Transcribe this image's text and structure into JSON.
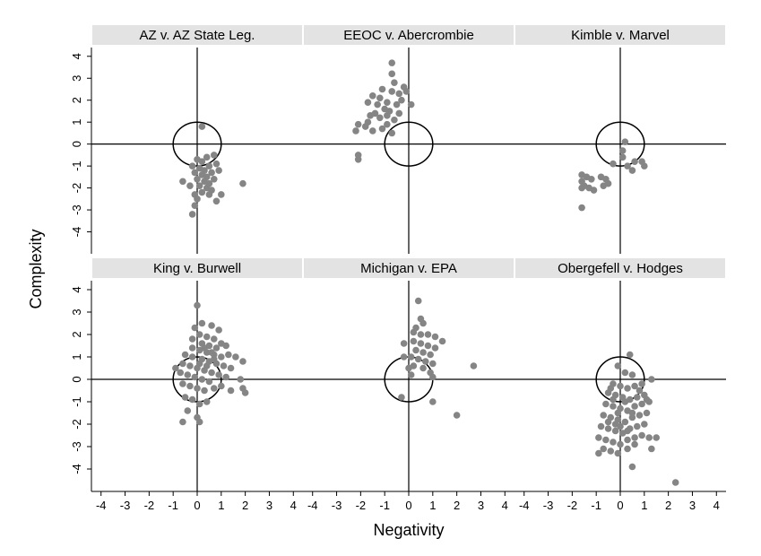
{
  "chart_data": {
    "type": "scatter",
    "xlabel": "Negativity",
    "ylabel": "Complexity",
    "xticks": [
      -4,
      -3,
      -2,
      -1,
      0,
      1,
      2,
      3,
      4
    ],
    "yticks": [
      -4,
      -3,
      -2,
      -1,
      0,
      1,
      2,
      3,
      4
    ],
    "xlim": [
      -4.4,
      4.4
    ],
    "ylim": [
      -5.0,
      4.4
    ],
    "reference_lines": {
      "x": 0,
      "y": 0
    },
    "reference_circle": {
      "center": [
        0,
        0
      ],
      "radius": 1
    },
    "grid": false,
    "point_color": "#858585",
    "strip_color": "#e3e3e3",
    "panels": [
      {
        "title": "AZ v. AZ State Leg.",
        "points": [
          [
            0.2,
            0.8
          ],
          [
            0.0,
            -0.7
          ],
          [
            0.2,
            -0.8
          ],
          [
            0.4,
            -0.6
          ],
          [
            0.7,
            -0.5
          ],
          [
            -0.2,
            -1.0
          ],
          [
            0.1,
            -1.1
          ],
          [
            0.3,
            -1.2
          ],
          [
            0.5,
            -1.0
          ],
          [
            0.8,
            -0.9
          ],
          [
            -0.1,
            -1.3
          ],
          [
            0.2,
            -1.4
          ],
          [
            0.4,
            -1.5
          ],
          [
            0.6,
            -1.3
          ],
          [
            0.9,
            -1.2
          ],
          [
            0.0,
            -1.6
          ],
          [
            0.3,
            -1.7
          ],
          [
            0.5,
            -1.8
          ],
          [
            0.7,
            -1.6
          ],
          [
            0.1,
            -1.9
          ],
          [
            0.4,
            -2.0
          ],
          [
            0.6,
            -2.1
          ],
          [
            0.2,
            -2.2
          ],
          [
            -0.1,
            -2.3
          ],
          [
            0.5,
            -2.3
          ],
          [
            0.8,
            -2.6
          ],
          [
            1.0,
            -2.3
          ],
          [
            0.0,
            -2.5
          ],
          [
            -0.6,
            -1.7
          ],
          [
            -0.3,
            -1.9
          ],
          [
            1.9,
            -1.8
          ],
          [
            -0.2,
            -3.2
          ],
          [
            -0.1,
            -2.8
          ]
        ]
      },
      {
        "title": "EEOC v. Abercrombie",
        "points": [
          [
            -2.1,
            -0.7
          ],
          [
            -2.1,
            -0.5
          ],
          [
            -2.2,
            0.6
          ],
          [
            -2.1,
            0.9
          ],
          [
            -1.8,
            0.8
          ],
          [
            -1.5,
            0.6
          ],
          [
            -1.7,
            1.0
          ],
          [
            -1.6,
            1.3
          ],
          [
            -1.4,
            1.4
          ],
          [
            -1.2,
            1.2
          ],
          [
            -1.0,
            1.6
          ],
          [
            -0.8,
            1.5
          ],
          [
            -0.6,
            1.1
          ],
          [
            -0.9,
            0.9
          ],
          [
            -1.1,
            0.7
          ],
          [
            -0.7,
            0.5
          ],
          [
            -1.7,
            1.9
          ],
          [
            -1.5,
            2.2
          ],
          [
            -1.2,
            2.1
          ],
          [
            -0.9,
            1.9
          ],
          [
            -0.5,
            1.8
          ],
          [
            -0.3,
            2.0
          ],
          [
            -1.1,
            2.5
          ],
          [
            -0.7,
            2.4
          ],
          [
            -0.4,
            2.3
          ],
          [
            -0.6,
            2.8
          ],
          [
            -0.7,
            3.2
          ],
          [
            -0.7,
            3.7
          ],
          [
            -0.2,
            2.6
          ],
          [
            -0.1,
            2.4
          ],
          [
            -0.4,
            1.4
          ],
          [
            -0.9,
            1.3
          ],
          [
            -1.3,
            1.8
          ],
          [
            0.1,
            1.8
          ]
        ]
      },
      {
        "title": "Kimble v. Marvel",
        "points": [
          [
            0.2,
            0.1
          ],
          [
            0.1,
            -0.3
          ],
          [
            -0.3,
            -0.9
          ],
          [
            0.1,
            -0.6
          ],
          [
            0.6,
            -0.8
          ],
          [
            0.9,
            -0.8
          ],
          [
            1.0,
            -1.0
          ],
          [
            0.5,
            -1.2
          ],
          [
            0.3,
            -1.0
          ],
          [
            -1.6,
            -1.4
          ],
          [
            -1.4,
            -1.5
          ],
          [
            -1.2,
            -1.6
          ],
          [
            -0.8,
            -1.5
          ],
          [
            -0.6,
            -1.6
          ],
          [
            -0.5,
            -1.8
          ],
          [
            -1.6,
            -1.7
          ],
          [
            -1.5,
            -1.9
          ],
          [
            -1.6,
            -2.0
          ],
          [
            -1.3,
            -2.0
          ],
          [
            -1.1,
            -2.1
          ],
          [
            -0.7,
            -1.9
          ],
          [
            -1.6,
            -2.9
          ]
        ]
      },
      {
        "title": "King v. Burwell",
        "points": [
          [
            0.0,
            3.3
          ],
          [
            -0.1,
            2.3
          ],
          [
            0.2,
            2.5
          ],
          [
            0.6,
            2.4
          ],
          [
            0.9,
            2.2
          ],
          [
            0.1,
            2.0
          ],
          [
            0.4,
            1.9
          ],
          [
            0.7,
            1.8
          ],
          [
            1.0,
            1.6
          ],
          [
            1.2,
            1.5
          ],
          [
            0.2,
            1.6
          ],
          [
            0.5,
            1.5
          ],
          [
            0.8,
            1.4
          ],
          [
            -0.2,
            1.4
          ],
          [
            0.1,
            1.3
          ],
          [
            0.4,
            1.2
          ],
          [
            0.7,
            1.1
          ],
          [
            1.0,
            1.0
          ],
          [
            1.3,
            1.1
          ],
          [
            1.6,
            1.0
          ],
          [
            -0.5,
            1.1
          ],
          [
            -0.2,
            1.0
          ],
          [
            0.2,
            0.9
          ],
          [
            0.5,
            0.8
          ],
          [
            0.8,
            0.7
          ],
          [
            1.1,
            0.6
          ],
          [
            1.4,
            0.5
          ],
          [
            -0.6,
            0.7
          ],
          [
            -0.3,
            0.6
          ],
          [
            0.0,
            0.5
          ],
          [
            0.3,
            0.4
          ],
          [
            0.6,
            0.3
          ],
          [
            0.9,
            0.2
          ],
          [
            1.2,
            0.1
          ],
          [
            -0.9,
            0.5
          ],
          [
            -0.7,
            0.3
          ],
          [
            -0.4,
            0.2
          ],
          [
            -0.1,
            0.1
          ],
          [
            0.2,
            0.0
          ],
          [
            0.5,
            -0.1
          ],
          [
            -0.6,
            -0.2
          ],
          [
            -0.3,
            -0.3
          ],
          [
            0.0,
            -0.4
          ],
          [
            0.3,
            -0.5
          ],
          [
            0.7,
            -0.4
          ],
          [
            1.0,
            -0.3
          ],
          [
            1.4,
            -0.5
          ],
          [
            -0.5,
            -0.8
          ],
          [
            -0.2,
            -0.9
          ],
          [
            0.1,
            -1.1
          ],
          [
            0.4,
            -1.0
          ],
          [
            -0.4,
            -1.4
          ],
          [
            0.0,
            -1.7
          ],
          [
            0.1,
            -1.9
          ],
          [
            -0.6,
            -1.9
          ],
          [
            1.9,
            0.8
          ],
          [
            1.9,
            -0.4
          ],
          [
            2.0,
            -0.6
          ],
          [
            1.8,
            0.0
          ],
          [
            -0.2,
            1.8
          ],
          [
            0.1,
            0.7
          ],
          [
            0.4,
            0.6
          ],
          [
            0.7,
            0.9
          ],
          [
            0.3,
            1.4
          ],
          [
            0.6,
            1.2
          ]
        ]
      },
      {
        "title": "Michigan v. EPA",
        "points": [
          [
            0.4,
            3.5
          ],
          [
            0.5,
            2.7
          ],
          [
            0.6,
            2.5
          ],
          [
            0.3,
            2.3
          ],
          [
            0.2,
            2.1
          ],
          [
            0.5,
            2.0
          ],
          [
            0.8,
            2.0
          ],
          [
            1.1,
            1.9
          ],
          [
            1.4,
            1.7
          ],
          [
            0.2,
            1.7
          ],
          [
            0.5,
            1.6
          ],
          [
            0.8,
            1.5
          ],
          [
            1.1,
            1.4
          ],
          [
            0.3,
            1.3
          ],
          [
            0.6,
            1.2
          ],
          [
            0.9,
            1.1
          ],
          [
            0.1,
            1.0
          ],
          [
            0.4,
            0.9
          ],
          [
            0.7,
            0.8
          ],
          [
            1.0,
            0.7
          ],
          [
            0.2,
            0.6
          ],
          [
            0.6,
            0.5
          ],
          [
            0.9,
            0.3
          ],
          [
            1.0,
            0.1
          ],
          [
            0.0,
            0.5
          ],
          [
            -0.2,
            1.6
          ],
          [
            -0.2,
            1.0
          ],
          [
            0.1,
            0.2
          ],
          [
            2.7,
            0.6
          ],
          [
            1.0,
            -1.0
          ],
          [
            2.0,
            -1.6
          ],
          [
            -0.3,
            -0.8
          ]
        ]
      },
      {
        "title": "Obergefell v. Hodges",
        "points": [
          [
            0.4,
            1.1
          ],
          [
            -0.1,
            0.6
          ],
          [
            0.2,
            0.3
          ],
          [
            0.5,
            0.2
          ],
          [
            -0.3,
            -0.2
          ],
          [
            0.0,
            -0.3
          ],
          [
            0.3,
            -0.4
          ],
          [
            0.6,
            -0.3
          ],
          [
            0.9,
            -0.2
          ],
          [
            1.3,
            0.0
          ],
          [
            -0.5,
            -0.6
          ],
          [
            -0.2,
            -0.7
          ],
          [
            0.1,
            -0.8
          ],
          [
            0.4,
            -0.9
          ],
          [
            0.7,
            -0.8
          ],
          [
            1.0,
            -0.7
          ],
          [
            -0.6,
            -1.1
          ],
          [
            -0.3,
            -1.2
          ],
          [
            0.0,
            -1.3
          ],
          [
            0.3,
            -1.4
          ],
          [
            0.6,
            -1.2
          ],
          [
            0.9,
            -1.1
          ],
          [
            1.2,
            -1.0
          ],
          [
            -0.7,
            -1.6
          ],
          [
            -0.4,
            -1.7
          ],
          [
            -0.1,
            -1.8
          ],
          [
            0.2,
            -1.9
          ],
          [
            0.5,
            -1.7
          ],
          [
            0.8,
            -1.6
          ],
          [
            1.1,
            -1.5
          ],
          [
            -0.8,
            -2.1
          ],
          [
            -0.5,
            -2.2
          ],
          [
            -0.2,
            -2.3
          ],
          [
            0.1,
            -2.4
          ],
          [
            0.4,
            -2.2
          ],
          [
            0.7,
            -2.1
          ],
          [
            1.0,
            -2.0
          ],
          [
            -0.9,
            -2.6
          ],
          [
            -0.6,
            -2.7
          ],
          [
            -0.3,
            -2.8
          ],
          [
            0.0,
            -2.9
          ],
          [
            0.3,
            -2.7
          ],
          [
            0.6,
            -2.6
          ],
          [
            0.9,
            -2.5
          ],
          [
            1.2,
            -2.6
          ],
          [
            -0.7,
            -3.1
          ],
          [
            -0.4,
            -3.2
          ],
          [
            -0.1,
            -3.3
          ],
          [
            0.3,
            -3.1
          ],
          [
            0.5,
            -3.9
          ],
          [
            1.3,
            -3.1
          ],
          [
            1.5,
            -2.6
          ],
          [
            2.3,
            -4.6
          ],
          [
            -0.9,
            -3.3
          ],
          [
            1.1,
            -0.9
          ],
          [
            -0.1,
            -1.5
          ],
          [
            0.2,
            -1.0
          ],
          [
            0.5,
            -1.5
          ],
          [
            -0.4,
            -0.4
          ],
          [
            0.8,
            -0.5
          ],
          [
            -0.2,
            -2.0
          ],
          [
            0.0,
            -2.1
          ],
          [
            0.3,
            -2.3
          ],
          [
            -0.5,
            -1.9
          ],
          [
            0.6,
            -2.9
          ],
          [
            -0.3,
            -0.9
          ]
        ]
      }
    ]
  }
}
